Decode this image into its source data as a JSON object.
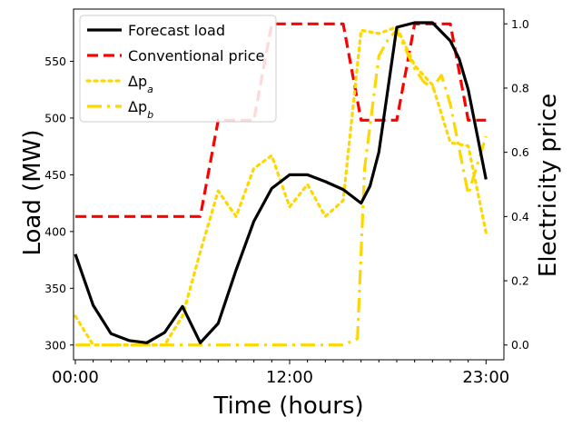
{
  "chart_data": {
    "type": "line",
    "title": "",
    "xlabel": "Time (hours)",
    "ylabel_left": "Load (MW)",
    "ylabel_right": "Electricity price",
    "x_ticks": [
      "00:00",
      "12:00",
      "23:00"
    ],
    "y_left_ticks": [
      300,
      350,
      400,
      450,
      500,
      550
    ],
    "y_right_ticks": [
      "0.0",
      "0.2",
      "0.4",
      "0.6",
      "0.8",
      "1.0"
    ],
    "xlim": [
      -0.1,
      24
    ],
    "y_left_lim": [
      287,
      596
    ],
    "y_right_lim": [
      -0.046,
      1.046
    ],
    "legend_position": "upper-left",
    "series": [
      {
        "name": "Forecast load",
        "legend_label": "Forecast load",
        "axis": "left",
        "color": "#000000",
        "style": "solid",
        "x": [
          0,
          1,
          2,
          3,
          4,
          5,
          6,
          7,
          8,
          9,
          10,
          11,
          12,
          13,
          14,
          15,
          16,
          16.5,
          17,
          18,
          19,
          20,
          21,
          21.5,
          22,
          23
        ],
        "y": [
          380,
          335,
          310,
          304,
          302,
          311,
          334,
          302,
          319,
          366,
          409,
          438,
          450,
          450,
          444,
          437,
          425,
          440,
          470,
          580,
          584,
          584,
          568,
          552,
          525,
          446
        ]
      },
      {
        "name": "Conventional price",
        "legend_label": "Conventional price",
        "axis": "right",
        "color": "#ff0000",
        "style": "dashed",
        "x": [
          0,
          7,
          8,
          10,
          11,
          15,
          16,
          18,
          19,
          21,
          22,
          23
        ],
        "y": [
          0.4,
          0.4,
          0.7,
          0.7,
          1.0,
          1.0,
          0.7,
          0.7,
          1.0,
          1.0,
          0.7,
          0.7
        ]
      },
      {
        "name": "Delta p_a",
        "legend_label": "Δp",
        "legend_sub": "a",
        "axis": "right",
        "color": "#ffd700",
        "style": "dotted",
        "x": [
          0,
          1,
          2,
          3,
          4,
          5,
          6,
          7,
          8,
          9,
          10,
          11,
          12,
          13,
          14,
          15,
          16,
          17,
          18,
          19,
          20,
          21,
          22,
          23
        ],
        "y": [
          0.09,
          0,
          0,
          0,
          0,
          0,
          0.09,
          0.29,
          0.48,
          0.4,
          0.55,
          0.59,
          0.43,
          0.5,
          0.4,
          0.45,
          0.98,
          0.97,
          0.99,
          0.87,
          0.81,
          0.63,
          0.62,
          0.35
        ]
      },
      {
        "name": "Delta p_b",
        "legend_label": "Δp",
        "legend_sub": "b",
        "axis": "right",
        "color": "#ffd700",
        "style": "dashdot",
        "x": [
          0,
          4,
          8,
          12,
          15,
          15.8,
          16.2,
          17,
          17.5,
          18,
          19,
          19.5,
          20,
          20.5,
          21,
          22,
          22.5,
          23
        ],
        "y": [
          0,
          0,
          0,
          0,
          0,
          0.02,
          0.55,
          0.9,
          0.95,
          0.98,
          0.86,
          0.82,
          0.8,
          0.84,
          0.75,
          0.47,
          0.56,
          0.65
        ]
      }
    ]
  }
}
